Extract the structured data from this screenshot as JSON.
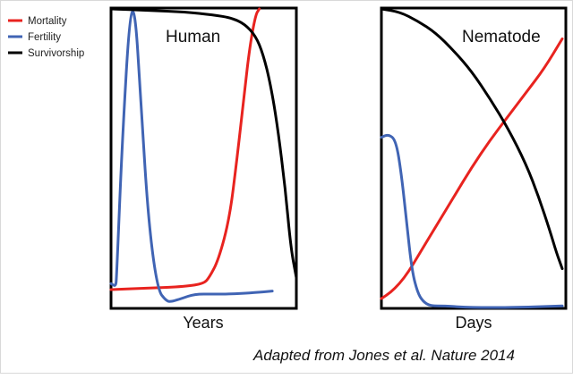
{
  "legend": {
    "items": [
      {
        "label": "Mortality",
        "color": "#e8231f"
      },
      {
        "label": "Fertility",
        "color": "#4064b4"
      },
      {
        "label": "Survivorship",
        "color": "#000000"
      }
    ]
  },
  "caption": "Adapted from Jones et al. Nature 2014",
  "chart_data": [
    {
      "type": "line",
      "title": "Human",
      "xlabel": "Years",
      "ylabel": "",
      "xlim": [
        0,
        1
      ],
      "ylim": [
        0,
        1
      ],
      "ticks": false,
      "series": [
        {
          "name": "Mortality",
          "color": "#e8231f",
          "x": [
            0,
            0.2,
            0.4,
            0.5,
            0.53,
            0.58,
            0.64,
            0.68,
            0.72,
            0.75,
            0.78,
            0.8
          ],
          "y": [
            0.06,
            0.065,
            0.07,
            0.08,
            0.1,
            0.16,
            0.3,
            0.5,
            0.72,
            0.88,
            0.98,
            1.0
          ]
        },
        {
          "name": "Fertility",
          "color": "#4064b4",
          "x": [
            0,
            0.025,
            0.03,
            0.06,
            0.1,
            0.13,
            0.16,
            0.2,
            0.25,
            0.3,
            0.33,
            0.38,
            0.45,
            0.55,
            0.65,
            0.78,
            0.87
          ],
          "y": [
            0.08,
            0.07,
            0.1,
            0.55,
            0.98,
            1.0,
            0.7,
            0.3,
            0.06,
            0.02,
            0.02,
            0.03,
            0.045,
            0.045,
            0.045,
            0.05,
            0.055
          ]
        },
        {
          "name": "Survivorship",
          "color": "#000000",
          "x": [
            0,
            0.2,
            0.4,
            0.55,
            0.65,
            0.72,
            0.78,
            0.82,
            0.86,
            0.9,
            0.94,
            0.97,
            1.0
          ],
          "y": [
            1.0,
            0.995,
            0.99,
            0.98,
            0.97,
            0.95,
            0.91,
            0.85,
            0.75,
            0.6,
            0.4,
            0.2,
            0.1
          ]
        }
      ]
    },
    {
      "type": "line",
      "title": "Nematode",
      "xlabel": "Days",
      "ylabel": "",
      "xlim": [
        0,
        1
      ],
      "ylim": [
        0,
        1
      ],
      "ticks": false,
      "series": [
        {
          "name": "Mortality",
          "color": "#e8231f",
          "x": [
            0,
            0.05,
            0.1,
            0.15,
            0.2,
            0.3,
            0.4,
            0.5,
            0.6,
            0.7,
            0.8,
            0.9,
            1.0
          ],
          "y": [
            0.03,
            0.05,
            0.08,
            0.12,
            0.17,
            0.27,
            0.37,
            0.47,
            0.56,
            0.64,
            0.72,
            0.8,
            0.9
          ]
        },
        {
          "name": "Fertility",
          "color": "#4064b4",
          "x": [
            0,
            0.04,
            0.08,
            0.11,
            0.14,
            0.17,
            0.2,
            0.23,
            0.27,
            0.35,
            0.5,
            0.7,
            1.0
          ],
          "y": [
            0.57,
            0.58,
            0.56,
            0.45,
            0.28,
            0.12,
            0.05,
            0.02,
            0.005,
            0.005,
            0.0,
            0.0,
            0.005
          ]
        },
        {
          "name": "Survivorship",
          "color": "#000000",
          "x": [
            0,
            0.1,
            0.2,
            0.3,
            0.4,
            0.5,
            0.6,
            0.7,
            0.8,
            0.87,
            0.93,
            0.97,
            1.0
          ],
          "y": [
            1.0,
            0.99,
            0.96,
            0.92,
            0.86,
            0.79,
            0.7,
            0.6,
            0.48,
            0.37,
            0.26,
            0.18,
            0.13
          ]
        }
      ]
    }
  ]
}
